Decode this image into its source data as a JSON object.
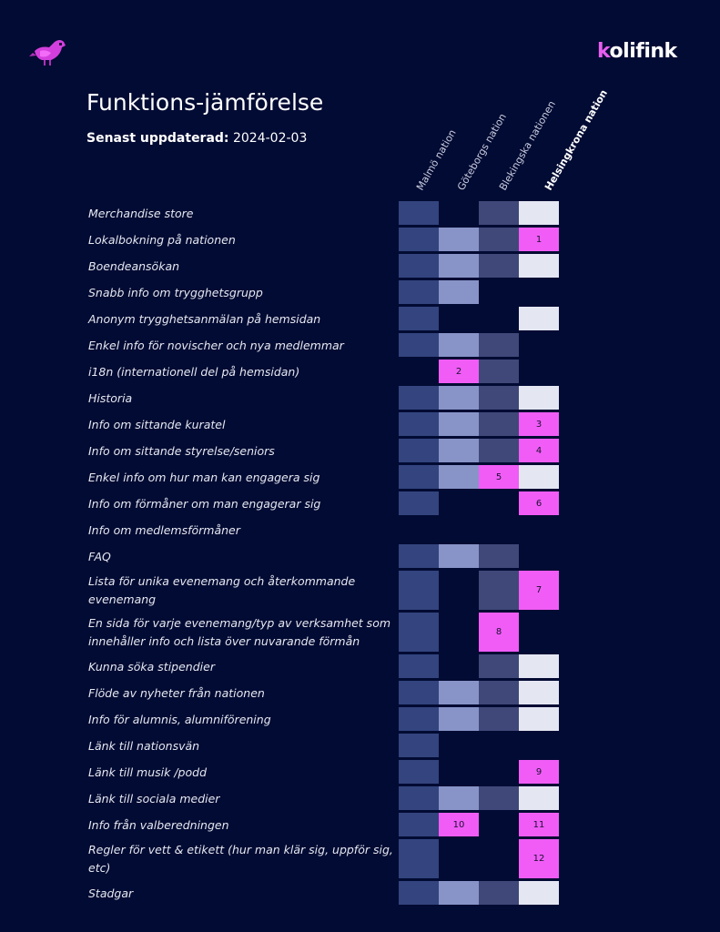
{
  "header": {
    "logo_text_accent": "k",
    "logo_text_rest": "olifink",
    "title": "Funktions-jämförelse",
    "updated_label": "Senast uppdaterad:",
    "updated_date": "2024-02-03"
  },
  "columns": [
    "Malmö nation",
    "Göteborgs nation",
    "Blekingska nationen",
    "Helsingkrona nation"
  ],
  "rows": [
    {
      "label": "Merchandise store",
      "cells": [
        "y",
        "",
        "y",
        "y"
      ]
    },
    {
      "label": "Lokalbokning på nationen",
      "cells": [
        "y",
        "y",
        "y",
        "1"
      ]
    },
    {
      "label": "Boendeansökan",
      "cells": [
        "y",
        "y",
        "y",
        "y"
      ]
    },
    {
      "label": "Snabb info om trygghetsgrupp",
      "cells": [
        "y",
        "y",
        "",
        ""
      ]
    },
    {
      "label": "Anonym trygghetsanmälan på hemsidan",
      "cells": [
        "y",
        "",
        "",
        "y"
      ]
    },
    {
      "label": "Enkel info för novischer och nya medlemmar",
      "cells": [
        "y",
        "y",
        "y",
        ""
      ]
    },
    {
      "label": "i18n (internationell del på hemsidan)",
      "cells": [
        "",
        "2",
        "y",
        ""
      ]
    },
    {
      "label": "Historia",
      "cells": [
        "y",
        "y",
        "y",
        "y"
      ]
    },
    {
      "label": "Info om sittande kuratel",
      "cells": [
        "y",
        "y",
        "y",
        "3"
      ]
    },
    {
      "label": "Info om sittande styrelse/seniors",
      "cells": [
        "y",
        "y",
        "y",
        "4"
      ]
    },
    {
      "label": "Enkel info om hur man kan engagera sig",
      "cells": [
        "y",
        "y",
        "5",
        "y"
      ]
    },
    {
      "label": "Info om förmåner om man engagerar sig",
      "cells": [
        "y",
        "",
        "",
        "6"
      ]
    },
    {
      "label": "Info om medlemsförmåner",
      "cells": [
        "",
        "",
        "",
        ""
      ]
    },
    {
      "label": "FAQ",
      "cells": [
        "y",
        "y",
        "y",
        ""
      ]
    },
    {
      "label": "Lista för unika evenemang och återkommande evenemang",
      "cells": [
        "y",
        "",
        "y",
        "7"
      ]
    },
    {
      "label": "En sida för varje evenemang/typ av verksamhet som innehåller info och lista över nuvarande förmån",
      "cells": [
        "y",
        "",
        "8",
        ""
      ]
    },
    {
      "label": "Kunna söka stipendier",
      "cells": [
        "y",
        "",
        "y",
        "y"
      ]
    },
    {
      "label": "Flöde av nyheter från nationen",
      "cells": [
        "y",
        "y",
        "y",
        "y"
      ]
    },
    {
      "label": "Info för alumnis, alumniförening",
      "cells": [
        "y",
        "y",
        "y",
        "y"
      ]
    },
    {
      "label": "Länk till nationsvän",
      "cells": [
        "y",
        "",
        "",
        ""
      ]
    },
    {
      "label": "Länk till musik /podd",
      "cells": [
        "y",
        "",
        "",
        "9"
      ]
    },
    {
      "label": "Länk till sociala medier",
      "cells": [
        "y",
        "y",
        "y",
        "y"
      ]
    },
    {
      "label": "Info från valberedningen",
      "cells": [
        "y",
        "10",
        "",
        "11"
      ]
    },
    {
      "label": "Regler för vett & etikett (hur man klär sig, uppför sig, etc)",
      "cells": [
        "y",
        "",
        "",
        "12"
      ]
    },
    {
      "label": "Stadgar",
      "cells": [
        "y",
        "y",
        "y",
        "y"
      ]
    }
  ],
  "colors": {
    "background": "#020b33",
    "malmo": "#33447e",
    "goteborg": "#8894c7",
    "blekinge": "#3f4878",
    "helsingkrona": "#e4e6f2",
    "note": "#f15cf6",
    "brand_accent": "#e85ef0"
  }
}
